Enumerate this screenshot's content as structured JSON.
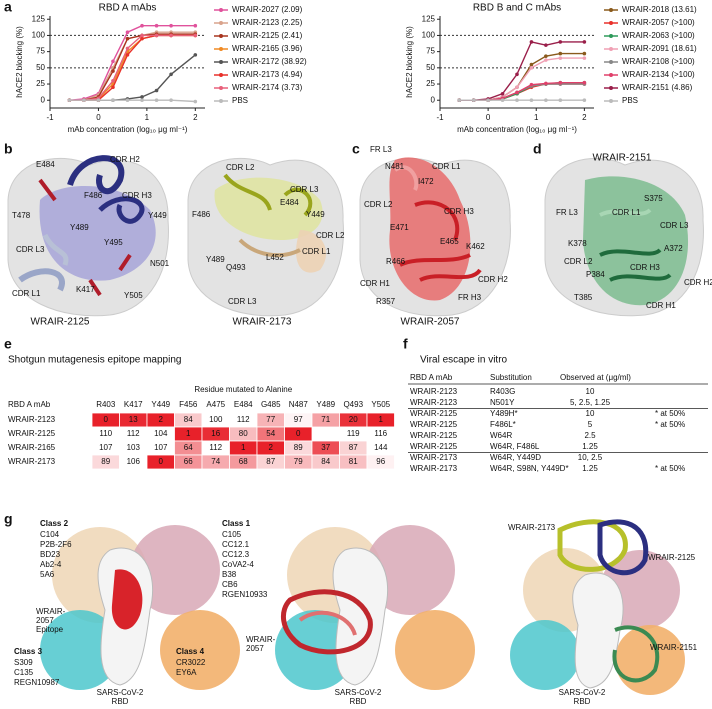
{
  "panel_labels": [
    "a",
    "b",
    "c",
    "d",
    "e",
    "f",
    "g"
  ],
  "chart_data": [
    {
      "type": "line",
      "title": "RBD A mAbs",
      "xlabel": "mAb concentration (log₁₀ μg ml⁻¹)",
      "ylabel": "hACE2 blocking (%)",
      "x": [
        -0.6,
        -0.3,
        0,
        0.3,
        0.6,
        0.9,
        1.2,
        1.5,
        2.0
      ],
      "xlim": [
        -1,
        2.2
      ],
      "xticks": [
        -1,
        0,
        1,
        2
      ],
      "ylim": [
        -12,
        130
      ],
      "yticks": [
        0,
        25,
        50,
        75,
        100,
        125
      ],
      "reference_lines": [
        50,
        100
      ],
      "series": [
        {
          "name": "WRAIR-2027 (2.09)",
          "color": "#e0529c",
          "values": [
            0,
            2,
            10,
            60,
            105,
            115,
            115,
            115,
            115
          ]
        },
        {
          "name": "WRAIR-2123 (2.25)",
          "color": "#d9a38c",
          "values": [
            0,
            0,
            8,
            50,
            95,
            100,
            105,
            105,
            105
          ]
        },
        {
          "name": "WRAIR-2125 (2.41)",
          "color": "#a8351f",
          "values": [
            0,
            0,
            5,
            45,
            95,
            100,
            102,
            102,
            102
          ]
        },
        {
          "name": "WRAIR-2165 (3.96)",
          "color": "#f08a24",
          "values": [
            0,
            0,
            2,
            25,
            75,
            95,
            100,
            100,
            100
          ]
        },
        {
          "name": "WRAIR-2172 (38.92)",
          "color": "#555555",
          "values": [
            0,
            0,
            0,
            0,
            2,
            5,
            15,
            40,
            70
          ]
        },
        {
          "name": "WRAIR-2173 (4.94)",
          "color": "#e8312a",
          "values": [
            0,
            0,
            0,
            20,
            70,
            95,
            100,
            100,
            100
          ]
        },
        {
          "name": "WRAIR-2174 (3.73)",
          "color": "#e8607a",
          "values": [
            0,
            0,
            3,
            30,
            80,
            100,
            100,
            100,
            100
          ]
        },
        {
          "name": "PBS",
          "color": "#bbbbbb",
          "values": [
            0,
            0,
            0,
            0,
            0,
            0,
            0,
            0,
            -2
          ]
        }
      ]
    },
    {
      "type": "line",
      "title": "RBD B and C mAbs",
      "xlabel": "mAb concentration (log₁₀ μg ml⁻¹)",
      "ylabel": "hACE2 blocking (%)",
      "x": [
        -0.6,
        -0.3,
        0,
        0.3,
        0.6,
        0.9,
        1.2,
        1.5,
        2.0
      ],
      "xlim": [
        -1,
        2.2
      ],
      "xticks": [
        -1,
        0,
        1,
        2
      ],
      "ylim": [
        -12,
        130
      ],
      "yticks": [
        0,
        25,
        50,
        75,
        100,
        125
      ],
      "reference_lines": [
        50,
        100
      ],
      "series": [
        {
          "name": "WRAIR-2018 (13.61)",
          "color": "#8a5a1c",
          "values": [
            0,
            0,
            0,
            5,
            20,
            55,
            68,
            72,
            72
          ]
        },
        {
          "name": "WRAIR-2057 (>100)",
          "color": "#e8312a",
          "values": [
            0,
            0,
            0,
            2,
            10,
            20,
            25,
            25,
            25
          ]
        },
        {
          "name": "WRAIR-2063 (>100)",
          "color": "#2e9a5a",
          "values": [
            0,
            0,
            0,
            2,
            10,
            22,
            25,
            27,
            27
          ]
        },
        {
          "name": "WRAIR-2091 (18.61)",
          "color": "#f0a0b4",
          "values": [
            0,
            0,
            0,
            5,
            20,
            50,
            62,
            65,
            65
          ]
        },
        {
          "name": "WRAIR-2108 (>100)",
          "color": "#888888",
          "values": [
            0,
            0,
            0,
            3,
            12,
            22,
            25,
            25,
            25
          ]
        },
        {
          "name": "WRAIR-2134 (>100)",
          "color": "#e0406a",
          "values": [
            0,
            0,
            0,
            3,
            12,
            24,
            26,
            27,
            27
          ]
        },
        {
          "name": "WRAIR-2151 (4.86)",
          "color": "#9a1f4a",
          "values": [
            0,
            0,
            2,
            10,
            40,
            90,
            85,
            90,
            90
          ]
        },
        {
          "name": "PBS",
          "color": "#bbbbbb",
          "values": [
            0,
            0,
            0,
            0,
            0,
            0,
            0,
            0,
            0
          ]
        }
      ]
    }
  ],
  "panel_b": {
    "left": {
      "title": "WRAIR-2125",
      "color": "#2b2f80",
      "labels": [
        {
          "text": "CDR H2",
          "color": "#2b2f80"
        },
        {
          "text": "E484",
          "color": "#111111"
        },
        {
          "text": "F486",
          "color": "#111111"
        },
        {
          "text": "CDR H3",
          "color": "#2b2f80"
        },
        {
          "text": "T478",
          "color": "#111111"
        },
        {
          "text": "Y449",
          "color": "#111111"
        },
        {
          "text": "Y489",
          "color": "#111111"
        },
        {
          "text": "Y495",
          "color": "#111111"
        },
        {
          "text": "CDR L3",
          "color": "#8795bf"
        },
        {
          "text": "N501",
          "color": "#111111"
        },
        {
          "text": "CDR L1",
          "color": "#8795bf"
        },
        {
          "text": "K417",
          "color": "#111111"
        },
        {
          "text": "Y505",
          "color": "#111111"
        }
      ]
    },
    "right": {
      "title": "WRAIR-2173",
      "color": "#9aa51c",
      "labels": [
        {
          "text": "CDR L2",
          "color": "#9aa51c"
        },
        {
          "text": "CDR L3",
          "color": "#9aa51c"
        },
        {
          "text": "E484",
          "color": "#111111"
        },
        {
          "text": "F486",
          "color": "#111111"
        },
        {
          "text": "Y449",
          "color": "#111111"
        },
        {
          "text": "CDR L2",
          "color": "#c4a07c"
        },
        {
          "text": "Y489",
          "color": "#111111"
        },
        {
          "text": "Q493",
          "color": "#111111"
        },
        {
          "text": "L452",
          "color": "#111111"
        },
        {
          "text": "CDR L1",
          "color": "#c4a07c"
        },
        {
          "text": "CDR L3",
          "color": "#c4a07c"
        }
      ]
    }
  },
  "panel_c": {
    "title": "WRAIR-2057",
    "color": "#d9383a",
    "labels": [
      {
        "text": "FR L3",
        "color": "#e08a8a"
      },
      {
        "text": "N481",
        "color": "#111111"
      },
      {
        "text": "CDR L1",
        "color": "#e08a8a"
      },
      {
        "text": "I472",
        "color": "#111111"
      },
      {
        "text": "CDR L2",
        "color": "#e08a8a"
      },
      {
        "text": "CDR H3",
        "color": "#d9383a"
      },
      {
        "text": "E471",
        "color": "#111111"
      },
      {
        "text": "E465",
        "color": "#111111"
      },
      {
        "text": "K462",
        "color": "#111111"
      },
      {
        "text": "R466",
        "color": "#111111"
      },
      {
        "text": "CDR H1",
        "color": "#d9383a"
      },
      {
        "text": "CDR H2",
        "color": "#d9383a"
      },
      {
        "text": "R357",
        "color": "#111111"
      },
      {
        "text": "FR H3",
        "color": "#d9383a"
      }
    ]
  },
  "panel_d": {
    "title": "WRAIR-2151",
    "color": "#2e8050",
    "labels": [
      {
        "text": "FR L3",
        "color": "#8cc79e"
      },
      {
        "text": "CDR L1",
        "color": "#8cc79e"
      },
      {
        "text": "S375",
        "color": "#111111"
      },
      {
        "text": "CDR L3",
        "color": "#8cc79e"
      },
      {
        "text": "K378",
        "color": "#111111"
      },
      {
        "text": "A372",
        "color": "#111111"
      },
      {
        "text": "CDR L2",
        "color": "#8cc79e"
      },
      {
        "text": "CDR H3",
        "color": "#2e8050"
      },
      {
        "text": "CDR H2",
        "color": "#2e8050"
      },
      {
        "text": "P384",
        "color": "#111111"
      },
      {
        "text": "T385",
        "color": "#111111"
      },
      {
        "text": "CDR H1",
        "color": "#2e8050"
      }
    ]
  },
  "panel_e": {
    "title": "Shotgun mutagenesis epitope mapping",
    "row_header": "RBD A mAb",
    "column_group": "Residue mutated to Alanine",
    "columns": [
      "R403",
      "K417",
      "Y449",
      "F456",
      "A475",
      "E484",
      "G485",
      "N487",
      "Y489",
      "Q493",
      "Y505"
    ],
    "rows": [
      {
        "name": "WRAIR-2123",
        "values": [
          0,
          13,
          2,
          84,
          100,
          112,
          77,
          97,
          71,
          20,
          1
        ]
      },
      {
        "name": "WRAIR-2125",
        "values": [
          110,
          112,
          104,
          1,
          16,
          80,
          54,
          0,
          null,
          119,
          116
        ]
      },
      {
        "name": "WRAIR-2165",
        "values": [
          107,
          103,
          107,
          64,
          112,
          1,
          2,
          89,
          37,
          87,
          144
        ]
      },
      {
        "name": "WRAIR-2173",
        "values": [
          89,
          106,
          0,
          66,
          74,
          68,
          87,
          79,
          84,
          81,
          96
        ]
      }
    ]
  },
  "panel_f": {
    "title": "Viral escape in vitro",
    "header": [
      "RBD A mAb",
      "Substitution",
      "Observed at (μg/ml)"
    ],
    "rows": [
      [
        "WRAIR-2123",
        "R403G",
        "10",
        null
      ],
      [
        "WRAIR-2123",
        "N501Y",
        "5, 2.5, 1.25",
        null
      ],
      [
        "WRAIR-2125",
        "Y489H*",
        "10",
        "* at 50%"
      ],
      [
        "WRAIR-2125",
        "F486L*",
        "5",
        "* at 50%"
      ],
      [
        "WRAIR-2125",
        "W64R",
        "2.5",
        null
      ],
      [
        "WRAIR-2125",
        "W64R, F486L",
        "1.25",
        null
      ],
      [
        "WRAIR-2173",
        "W64R, Y449D",
        "10, 2.5",
        null
      ],
      [
        "WRAIR-2173",
        "W64R, S98N, Y449D*",
        "1.25",
        "* at 50%"
      ]
    ]
  },
  "panel_g": {
    "labels": [
      {
        "text": "Class 2",
        "color": "#111111",
        "bold": true
      },
      {
        "text": "C104",
        "color": "#111111"
      },
      {
        "text": "P2B-2F6",
        "color": "#9a9a9a"
      },
      {
        "text": "BD23",
        "color": "#111111"
      },
      {
        "text": "Ab2-4",
        "color": "#111111"
      },
      {
        "text": "5A6",
        "color": "#111111"
      },
      {
        "text": "Class 1",
        "color": "#111111",
        "bold": true
      },
      {
        "text": "C105",
        "color": "#111111"
      },
      {
        "text": "CC12.1",
        "color": "#111111"
      },
      {
        "text": "CC12.3",
        "color": "#111111"
      },
      {
        "text": "CoVA2-4",
        "color": "#111111"
      },
      {
        "text": "B38",
        "color": "#111111"
      },
      {
        "text": "CB6",
        "color": "#d9383a"
      },
      {
        "text": "RGEN10933",
        "color": "#111111"
      },
      {
        "text": "WRAIR-",
        "color": "#d9383a"
      },
      {
        "text": "2057",
        "color": "#d9383a"
      },
      {
        "text": "Epitope",
        "color": "#d9383a"
      },
      {
        "text": "Class 3",
        "color": "#111111",
        "bold": true
      },
      {
        "text": "S309",
        "color": "#2ba3a8"
      },
      {
        "text": "C135",
        "color": "#111111"
      },
      {
        "text": "REGN10987",
        "color": "#111111"
      },
      {
        "text": "Class 4",
        "color": "#111111",
        "bold": true
      },
      {
        "text": "CR3022",
        "color": "#e8952e"
      },
      {
        "text": "EY6A",
        "color": "#111111"
      },
      {
        "text": "SARS-CoV-2",
        "color": "#111111"
      },
      {
        "text": "RBD",
        "color": "#111111"
      },
      {
        "text": "WRAIR-",
        "color": "#d9383a"
      },
      {
        "text": "2057",
        "color": "#d9383a"
      },
      {
        "text": "SARS-CoV-2",
        "color": "#111111"
      },
      {
        "text": "RBD",
        "color": "#111111"
      },
      {
        "text": "WRAIR-2173",
        "color": "#9aa51c"
      },
      {
        "text": "WRAIR-2125",
        "color": "#2b2f80"
      },
      {
        "text": "WRAIR-2151",
        "color": "#2e8050"
      },
      {
        "text": "SARS-CoV-2",
        "color": "#111111"
      },
      {
        "text": "RBD",
        "color": "#111111"
      }
    ]
  }
}
